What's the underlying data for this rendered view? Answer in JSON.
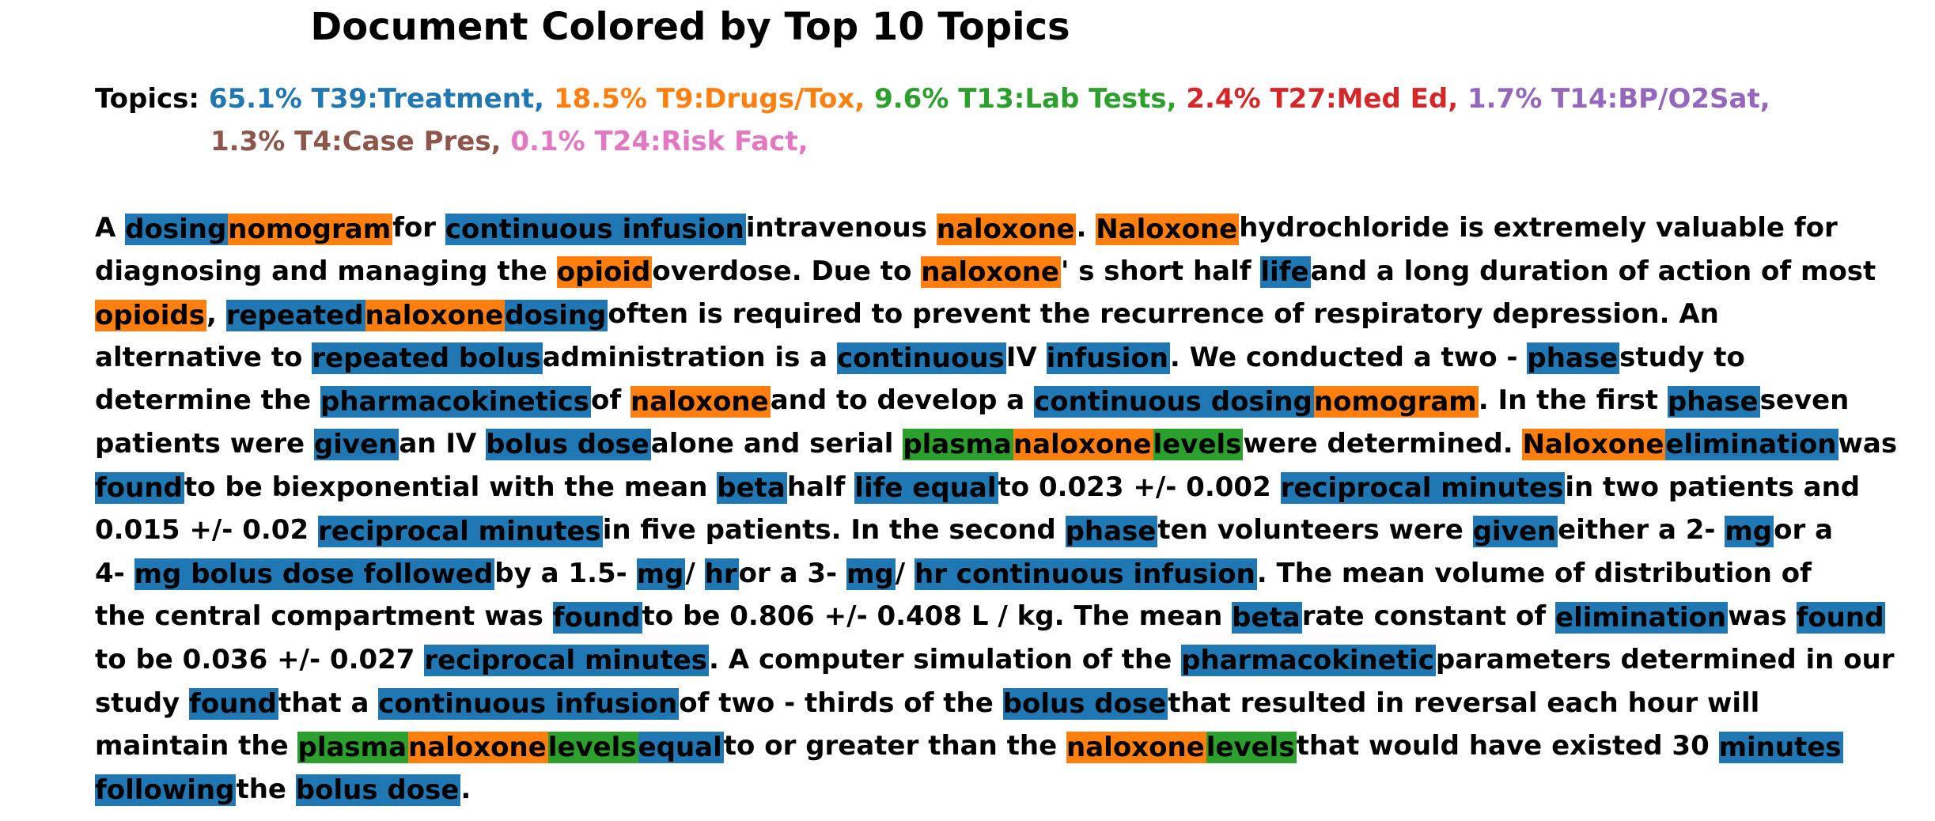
{
  "title": "Document Colored by Top 10 Topics",
  "topics_label": "Topics:",
  "topics": [
    {
      "text": "65.1% T39:Treatment,",
      "color": "#1f77b4"
    },
    {
      "text": "18.5% T9:Drugs/Tox,",
      "color": "#ff7f0e"
    },
    {
      "text": "9.6% T13:Lab Tests,",
      "color": "#2ca02c"
    },
    {
      "text": "2.4% T27:Med Ed,",
      "color": "#d62728"
    },
    {
      "text": "1.7% T14:BP/O2Sat,",
      "color": "#9467bd"
    },
    {
      "text": "1.3% T4:Case Pres,",
      "color": "#8c564b"
    },
    {
      "text": "0.1% T24:Risk Fact,",
      "color": "#e377c2"
    }
  ],
  "topics_row1_count": 5,
  "document_lines": [
    [
      [
        "A ",
        null
      ],
      [
        "dosing ",
        "T39"
      ],
      [
        "nomogram ",
        "T9"
      ],
      [
        "for ",
        null
      ],
      [
        "continuous infusion ",
        "T39"
      ],
      [
        "intravenous ",
        null
      ],
      [
        "naloxone",
        "T9"
      ],
      [
        ". ",
        null
      ],
      [
        "Naloxone ",
        "T9"
      ],
      [
        "hydrochloride is extremely valuable for",
        null
      ]
    ],
    [
      [
        "diagnosing and managing the ",
        null
      ],
      [
        "opioid ",
        "T9"
      ],
      [
        "overdose. Due to ",
        null
      ],
      [
        "naloxone",
        "T9"
      ],
      [
        "' s short half ",
        null
      ],
      [
        "life ",
        "T39"
      ],
      [
        "and a long duration of action of most",
        null
      ]
    ],
    [
      [
        "opioids",
        "T9"
      ],
      [
        ", ",
        null
      ],
      [
        "repeated ",
        "T39"
      ],
      [
        "naloxone ",
        "T9"
      ],
      [
        "dosing ",
        "T39"
      ],
      [
        "often is required to prevent the recurrence of respiratory depression. An",
        null
      ]
    ],
    [
      [
        "alternative to ",
        null
      ],
      [
        "repeated bolus ",
        "T39"
      ],
      [
        "administration is a ",
        null
      ],
      [
        "continuous ",
        "T39"
      ],
      [
        "IV ",
        null
      ],
      [
        "infusion",
        "T39"
      ],
      [
        ". We conducted a two - ",
        null
      ],
      [
        "phase ",
        "T39"
      ],
      [
        "study to",
        null
      ]
    ],
    [
      [
        "determine the ",
        null
      ],
      [
        "pharmacokinetics ",
        "T39"
      ],
      [
        "of ",
        null
      ],
      [
        "naloxone ",
        "T9"
      ],
      [
        "and to develop a ",
        null
      ],
      [
        "continuous dosing ",
        "T39"
      ],
      [
        "nomogram",
        "T9"
      ],
      [
        ". In the first ",
        null
      ],
      [
        "phase ",
        "T39"
      ],
      [
        "seven",
        null
      ]
    ],
    [
      [
        "patients were ",
        null
      ],
      [
        "given ",
        "T39"
      ],
      [
        "an IV ",
        null
      ],
      [
        "bolus dose ",
        "T39"
      ],
      [
        "alone and serial ",
        null
      ],
      [
        "plasma ",
        "T13"
      ],
      [
        "naloxone ",
        "T9"
      ],
      [
        "levels ",
        "T13"
      ],
      [
        "were determined. ",
        null
      ],
      [
        "Naloxone ",
        "T9"
      ],
      [
        "elimination ",
        "T39"
      ],
      [
        "was",
        null
      ]
    ],
    [
      [
        "found ",
        "T39"
      ],
      [
        "to be biexponential with the mean ",
        null
      ],
      [
        "beta ",
        "T39"
      ],
      [
        "half ",
        null
      ],
      [
        "life equal ",
        "T39"
      ],
      [
        "to 0.023 +/- 0.002 ",
        null
      ],
      [
        "reciprocal minutes ",
        "T39"
      ],
      [
        "in two patients and",
        null
      ]
    ],
    [
      [
        "0.015 +/- 0.02 ",
        null
      ],
      [
        "reciprocal minutes ",
        "T39"
      ],
      [
        "in five patients. In the second ",
        null
      ],
      [
        "phase ",
        "T39"
      ],
      [
        "ten volunteers were ",
        null
      ],
      [
        "given ",
        "T39"
      ],
      [
        "either a 2- ",
        null
      ],
      [
        "mg ",
        "T39"
      ],
      [
        "or a",
        null
      ]
    ],
    [
      [
        "4- ",
        null
      ],
      [
        "mg bolus dose followed ",
        "T39"
      ],
      [
        "by a 1.5- ",
        null
      ],
      [
        "mg ",
        "T39"
      ],
      [
        "/ ",
        null
      ],
      [
        "hr ",
        "T39"
      ],
      [
        "or a 3- ",
        null
      ],
      [
        "mg ",
        "T39"
      ],
      [
        "/ ",
        null
      ],
      [
        "hr continuous infusion",
        "T39"
      ],
      [
        ". The mean volume of distribution of",
        null
      ]
    ],
    [
      [
        "the central compartment was ",
        null
      ],
      [
        "found ",
        "T39"
      ],
      [
        "to be 0.806 +/- 0.408 L / kg. The mean ",
        null
      ],
      [
        "beta ",
        "T39"
      ],
      [
        "rate constant of ",
        null
      ],
      [
        "elimination ",
        "T39"
      ],
      [
        "was ",
        null
      ],
      [
        "found ",
        "T39"
      ]
    ],
    [
      [
        "to be 0.036 +/- 0.027 ",
        null
      ],
      [
        "reciprocal minutes",
        "T39"
      ],
      [
        ". A computer simulation of the ",
        null
      ],
      [
        "pharmacokinetic ",
        "T39"
      ],
      [
        "parameters determined in our",
        null
      ]
    ],
    [
      [
        "study ",
        null
      ],
      [
        "found ",
        "T39"
      ],
      [
        "that a ",
        null
      ],
      [
        "continuous infusion ",
        "T39"
      ],
      [
        "of two - thirds of the ",
        null
      ],
      [
        "bolus dose ",
        "T39"
      ],
      [
        "that resulted in reversal each hour will",
        null
      ]
    ],
    [
      [
        "maintain the ",
        null
      ],
      [
        "plasma ",
        "T13"
      ],
      [
        "naloxone ",
        "T9"
      ],
      [
        "levels ",
        "T13"
      ],
      [
        "equal ",
        "T39"
      ],
      [
        "to or greater than the ",
        null
      ],
      [
        "naloxone ",
        "T9"
      ],
      [
        "levels ",
        "T13"
      ],
      [
        "that would have existed 30 ",
        null
      ],
      [
        "minutes ",
        "T39"
      ]
    ],
    [
      [
        "following ",
        "T39"
      ],
      [
        "the ",
        null
      ],
      [
        "bolus dose",
        "T39"
      ],
      [
        ".",
        null
      ]
    ]
  ],
  "highlight_colors": {
    "T39": "#1f77b4",
    "T9": "#ff7f0e",
    "T13": "#2ca02c"
  }
}
